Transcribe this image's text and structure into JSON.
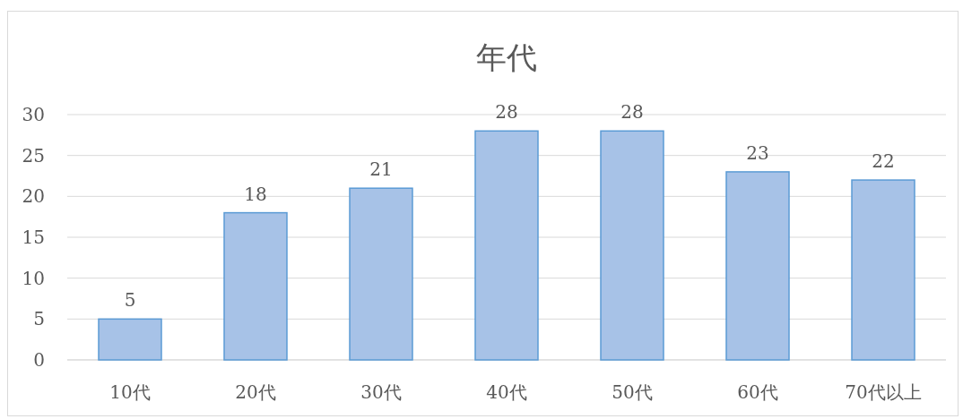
{
  "chart_data": {
    "type": "bar",
    "title": "年代",
    "categories": [
      "10代",
      "20代",
      "30代",
      "40代",
      "50代",
      "60代",
      "70代以上"
    ],
    "values": [
      5,
      18,
      21,
      28,
      28,
      23,
      22
    ],
    "color": "#a7c2e7",
    "ylim": [
      0,
      30
    ],
    "yticks": [
      0,
      5,
      10,
      15,
      20,
      25,
      30
    ],
    "grid": "y",
    "data_labels": true
  }
}
